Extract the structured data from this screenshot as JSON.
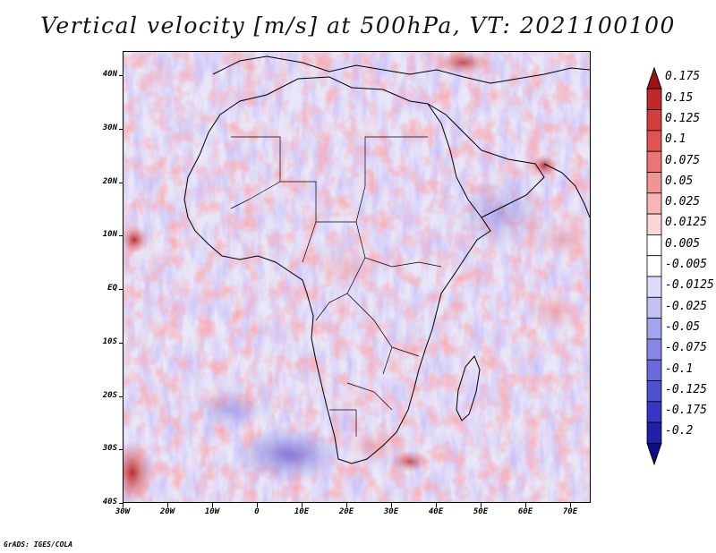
{
  "title": "Vertical velocity [m/s] at 500hPa, VT: 2021100100",
  "footer": "GrADS: IGES/COLA",
  "lat_ticks": [
    "40N",
    "30N",
    "20N",
    "10N",
    "EQ",
    "10S",
    "20S",
    "30S",
    "40S"
  ],
  "lon_ticks": [
    "30W",
    "20W",
    "10W",
    "0",
    "10E",
    "20E",
    "30E",
    "40E",
    "50E",
    "60E",
    "70E"
  ],
  "colorbar": {
    "labels": [
      "0.175",
      "0.15",
      "0.125",
      "0.1",
      "0.075",
      "0.05",
      "0.025",
      "0.0125",
      "0.005",
      "-0.005",
      "-0.0125",
      "-0.025",
      "-0.05",
      "-0.075",
      "-0.1",
      "-0.125",
      "-0.175",
      "-0.2"
    ],
    "colors": [
      "#a50f15",
      "#c0282a",
      "#d43c3c",
      "#e25252",
      "#ec7474",
      "#f29494",
      "#f7b6b6",
      "#fbd6d6",
      "#ffffff",
      "#ffffff",
      "#dcdcf8",
      "#c2c2f2",
      "#a4a4ec",
      "#8686e4",
      "#6a6adc",
      "#4f4fd2",
      "#3535c6",
      "#1f1fa8",
      "#0d0d85"
    ]
  }
}
